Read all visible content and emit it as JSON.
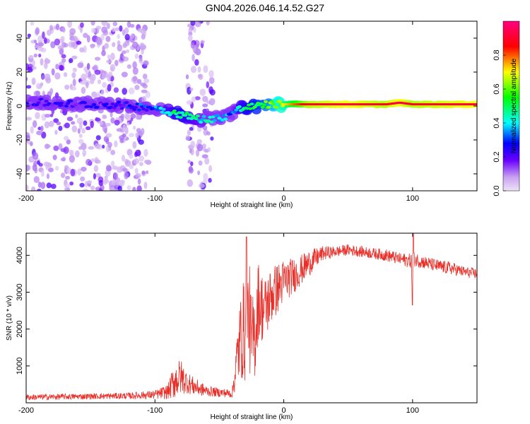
{
  "title": "GN04.2026.046.14.52.G27",
  "chart_data": [
    {
      "type": "heatmap",
      "title": "GN04.2026.046.14.52.G27",
      "xlabel": "Height of straight line (km)",
      "ylabel": "Frequency (Hz)",
      "xlim": [
        -200,
        150
      ],
      "ylim": [
        -50,
        50
      ],
      "xticks": [
        -200,
        -100,
        0,
        100
      ],
      "yticks": [
        40,
        20,
        0,
        -20,
        -40
      ],
      "colorbar": {
        "label": "Normalized spectral amplitude",
        "range": [
          0,
          1
        ],
        "ticks": [
          "0.0",
          "0.2",
          "0.4",
          "0.6",
          "0.8"
        ],
        "tick_values": [
          0.0,
          0.2,
          0.4,
          0.6,
          0.8
        ],
        "colors": [
          "#e6d8f5",
          "#6a00ff",
          "#0000ff",
          "#00ffff",
          "#00ff00",
          "#ffff00",
          "#ff0000",
          "#ff0080"
        ]
      },
      "ridge": {
        "x": [
          -200,
          -180,
          -160,
          -140,
          -120,
          -100,
          -90,
          -80,
          -70,
          -60,
          -50,
          -45,
          -40,
          -35,
          -30,
          -20,
          -10,
          0,
          20,
          50,
          80,
          90,
          100,
          150
        ],
        "frequency": [
          2,
          2,
          1,
          1,
          0,
          -1,
          -3,
          -5,
          -7,
          -8,
          -7,
          -6,
          -4,
          -2,
          -1,
          0,
          1,
          1,
          1,
          1,
          1,
          2,
          1,
          1
        ],
        "amplitude": [
          0.2,
          0.2,
          0.2,
          0.2,
          0.25,
          0.3,
          0.45,
          0.5,
          0.45,
          0.4,
          0.4,
          0.35,
          0.35,
          0.45,
          0.5,
          0.55,
          0.6,
          0.7,
          0.9,
          0.95,
          0.9,
          0.95,
          0.9,
          0.95
        ]
      },
      "noise_regions": [
        {
          "x_range": [
            -200,
            -105
          ],
          "freq_range": [
            -50,
            50
          ],
          "amplitude": 0.1
        },
        {
          "x_range": [
            -75,
            -55
          ],
          "freq_range": [
            -50,
            50
          ],
          "amplitude": 0.08
        }
      ]
    },
    {
      "type": "line",
      "xlabel": "Height of straight line (km)",
      "ylabel": "SNR (10 * v/v)",
      "xlim": [
        -200,
        150
      ],
      "ylim": [
        0,
        4600
      ],
      "xticks": [
        -200,
        -100,
        0,
        100
      ],
      "yticks": [
        1000,
        2000,
        3000,
        4000
      ],
      "color": "#e8302a",
      "series": [
        {
          "name": "SNR",
          "x": [
            -200,
            -180,
            -160,
            -140,
            -120,
            -100,
            -90,
            -85,
            -80,
            -75,
            -70,
            -65,
            -60,
            -50,
            -40,
            -35,
            -32,
            -30,
            -27,
            -25,
            -22,
            -20,
            -15,
            -10,
            -5,
            0,
            10,
            20,
            30,
            40,
            50,
            60,
            70,
            80,
            90,
            99,
            100,
            101,
            110,
            120,
            130,
            140,
            150
          ],
          "values": [
            150,
            160,
            170,
            180,
            190,
            220,
            300,
            600,
            700,
            550,
            450,
            380,
            320,
            280,
            250,
            1500,
            2000,
            1800,
            2500,
            1600,
            1900,
            2800,
            2500,
            2900,
            3100,
            3300,
            3500,
            3800,
            4050,
            4100,
            4150,
            4100,
            4050,
            4000,
            3900,
            3850,
            2700,
            3900,
            3800,
            3700,
            3650,
            3550,
            3500
          ],
          "noise_amplitude": [
            80,
            80,
            80,
            80,
            90,
            120,
            200,
            500,
            500,
            300,
            250,
            200,
            150,
            120,
            120,
            1000,
            1400,
            1300,
            1500,
            1300,
            1200,
            1100,
            900,
            800,
            700,
            600,
            450,
            350,
            200,
            150,
            150,
            150,
            150,
            170,
            170,
            200,
            0,
            200,
            180,
            180,
            180,
            150,
            150
          ]
        }
      ]
    }
  ]
}
